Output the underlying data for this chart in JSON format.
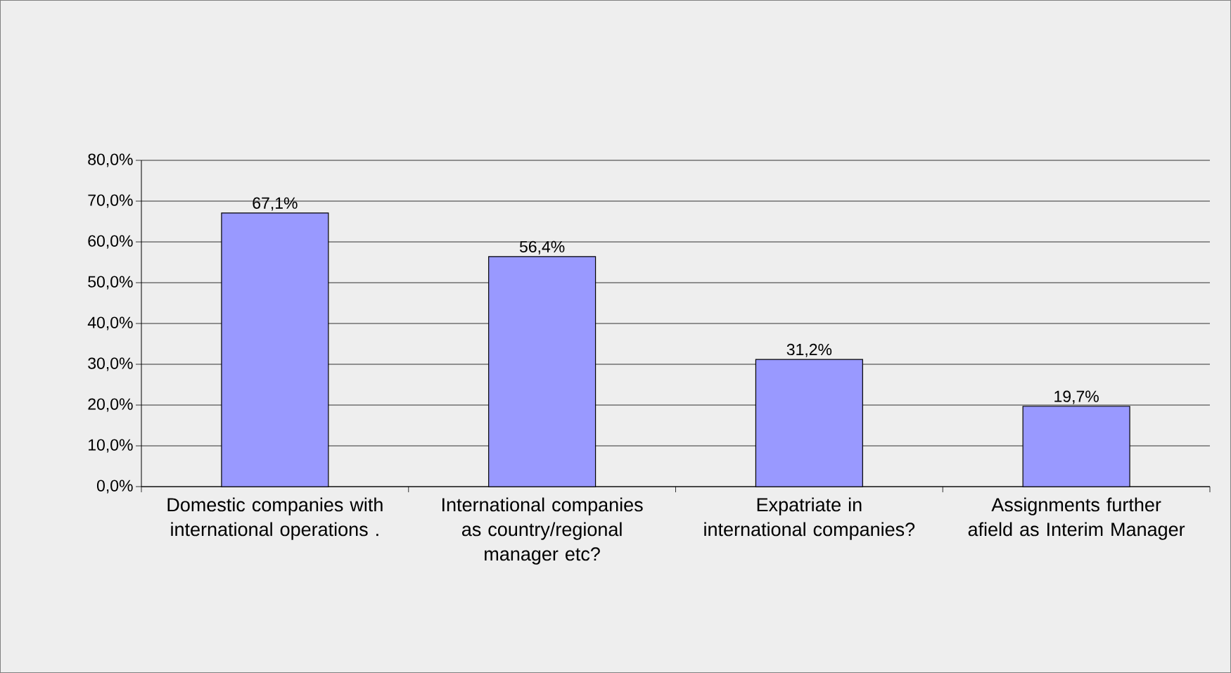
{
  "chart_data": {
    "type": "bar",
    "categories": [
      "Domestic companies with international operations .",
      "International companies as country/regional manager etc?",
      "Expatriate in international companies?",
      "Assignments further afield as Interim Manager"
    ],
    "values": [
      67.1,
      56.4,
      31.2,
      19.7
    ],
    "value_labels": [
      "67,1%",
      "56,4%",
      "31,2%",
      "19,7%"
    ],
    "color": "#9999ff",
    "ylim": [
      0,
      80
    ],
    "yticks": [
      {
        "value": 0,
        "label": "0,0%"
      },
      {
        "value": 10,
        "label": "10,0%"
      },
      {
        "value": 20,
        "label": "20,0%"
      },
      {
        "value": 30,
        "label": "30,0%"
      },
      {
        "value": 40,
        "label": "40,0%"
      },
      {
        "value": 50,
        "label": "50,0%"
      },
      {
        "value": 60,
        "label": "60,0%"
      },
      {
        "value": 70,
        "label": "70,0%"
      },
      {
        "value": 80,
        "label": "80,0%"
      }
    ],
    "grid": "y"
  }
}
